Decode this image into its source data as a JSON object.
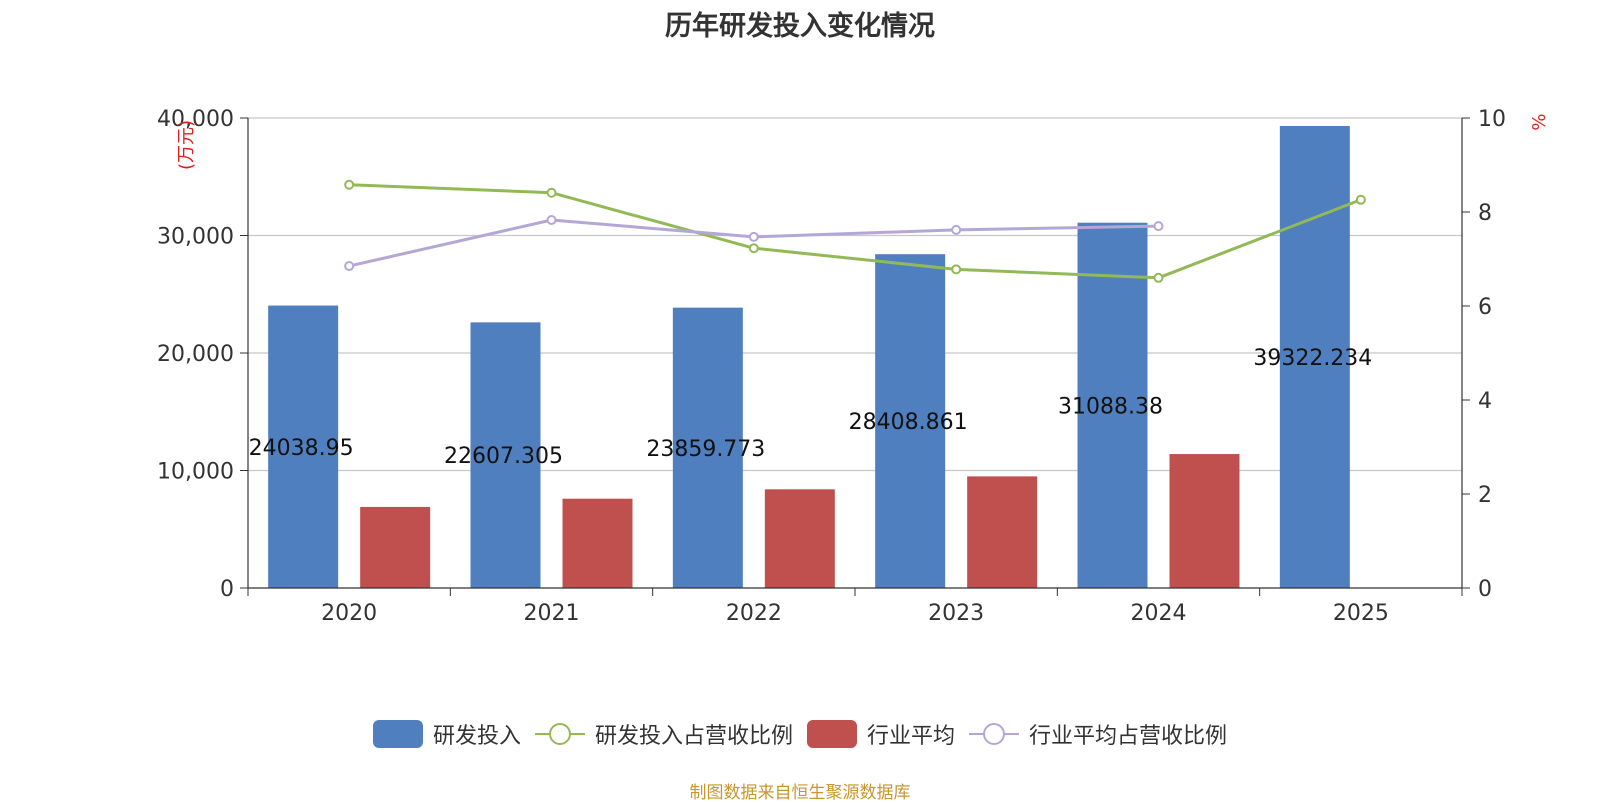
{
  "chart_data": {
    "type": "bar",
    "title": "历年研发投入变化情况",
    "categories": [
      "2020",
      "2021",
      "2022",
      "2023",
      "2024",
      "2025"
    ],
    "left_axis": {
      "unit": "(万元)",
      "min": 0,
      "max": 40000,
      "ticks": [
        "0",
        "10,000",
        "20,000",
        "30,000",
        "40,000"
      ]
    },
    "right_axis": {
      "unit": "%",
      "min": 0,
      "max": 10,
      "ticks": [
        "0",
        "2",
        "4",
        "6",
        "8",
        "10"
      ]
    },
    "series": [
      {
        "name": "研发投入",
        "kind": "bar",
        "axis": "left",
        "color": "#4f7fbf",
        "values": [
          24038.95,
          22607.305,
          23859.773,
          28408.861,
          31088.38,
          39322.234
        ],
        "labels": [
          "24038.95",
          "22607.305",
          "23859.773",
          "28408.861",
          "31088.38",
          "39322.234"
        ]
      },
      {
        "name": "研发投入占营收比例",
        "kind": "line",
        "axis": "right",
        "color": "#93b956",
        "values": [
          8.58,
          8.41,
          7.23,
          6.78,
          6.6,
          8.26
        ]
      },
      {
        "name": "行业平均",
        "kind": "bar",
        "axis": "left",
        "color": "#c0504d",
        "values": [
          6900,
          7600,
          8400,
          9500,
          11400,
          null
        ]
      },
      {
        "name": "行业平均占营收比例",
        "kind": "line",
        "axis": "right",
        "color": "#b4a7d6",
        "values": [
          6.85,
          7.83,
          7.47,
          7.62,
          7.7,
          null
        ]
      }
    ],
    "grid": true,
    "legend_position": "bottom"
  },
  "footer": "制图数据来自恒生聚源数据库"
}
